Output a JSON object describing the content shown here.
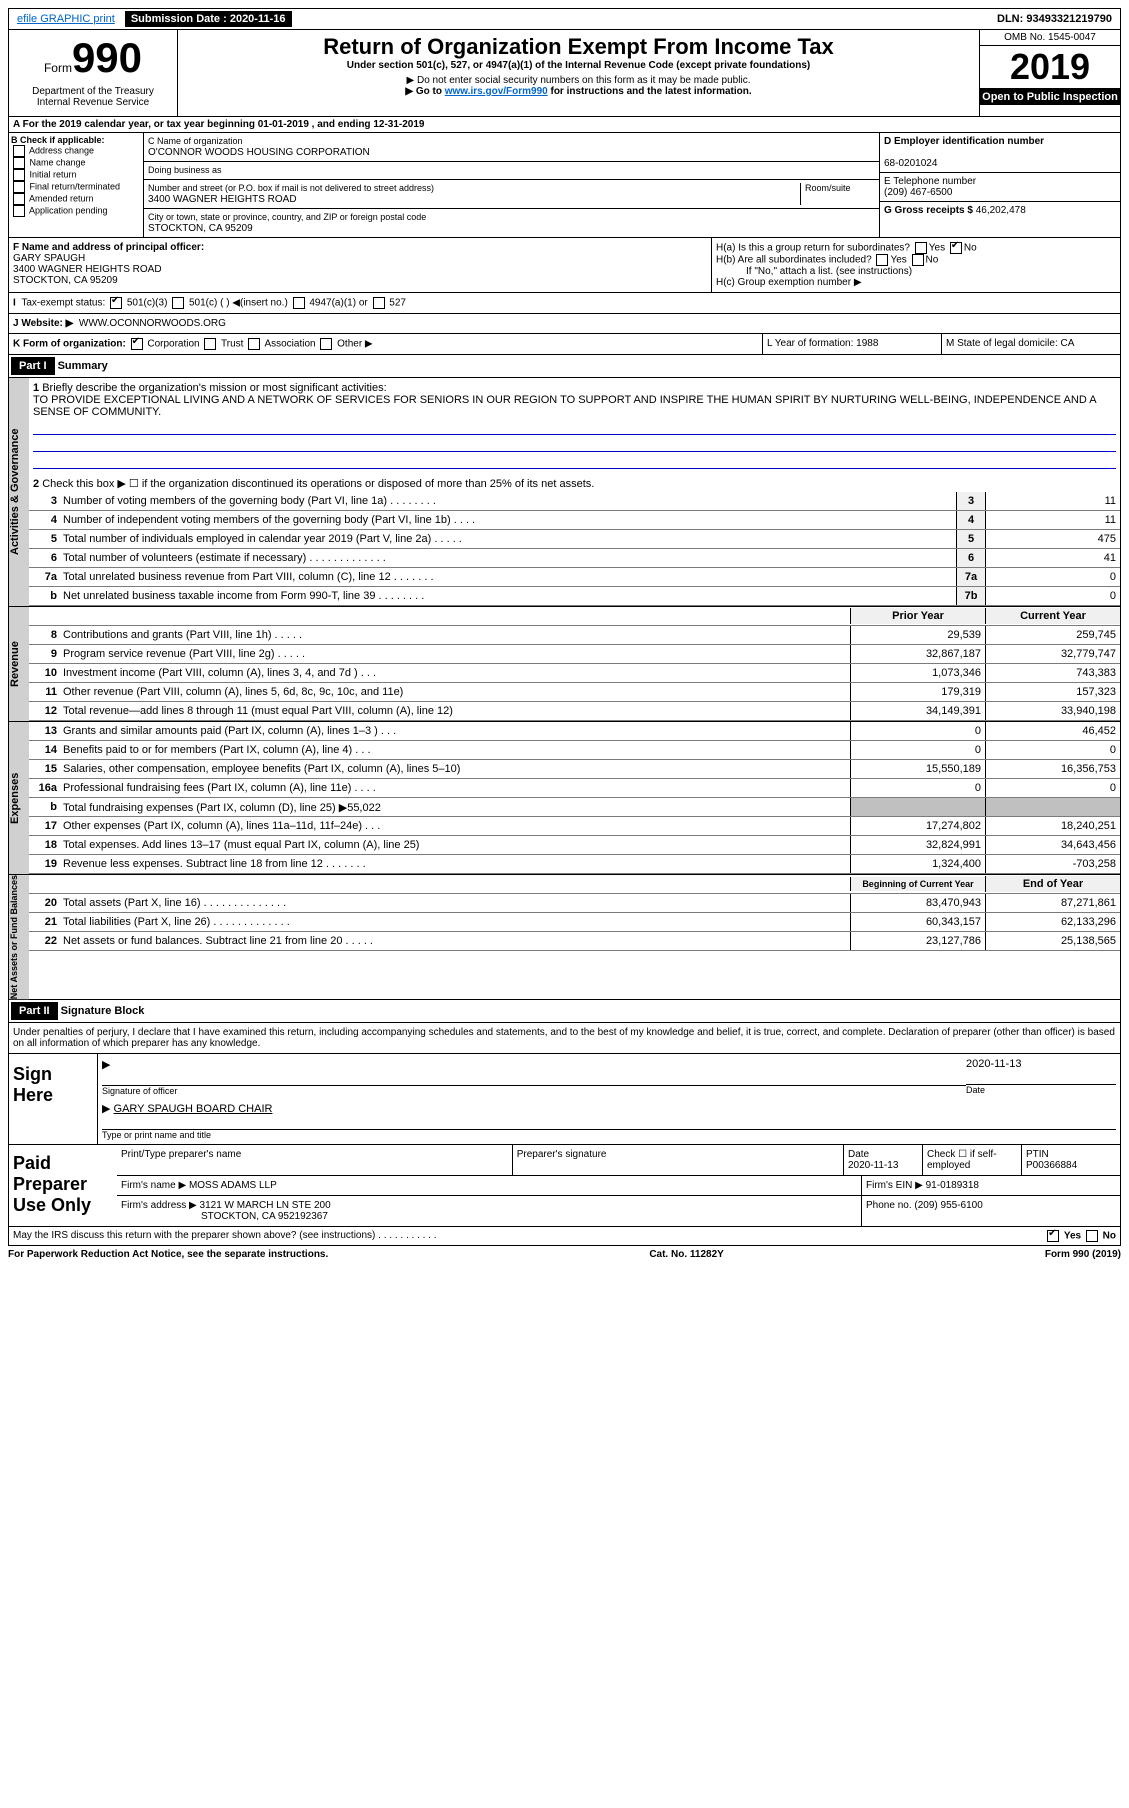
{
  "topbar": {
    "efile": "efile GRAPHIC print",
    "subdate_label": "Submission Date : 2020-11-16",
    "dln": "DLN: 93493321219790"
  },
  "header": {
    "form_prefix": "Form",
    "form_num": "990",
    "title": "Return of Organization Exempt From Income Tax",
    "subtitle": "Under section 501(c), 527, or 4947(a)(1) of the Internal Revenue Code (except private foundations)",
    "note1": "▶ Do not enter social security numbers on this form as it may be made public.",
    "note2_a": "▶ Go to ",
    "note2_link": "www.irs.gov/Form990",
    "note2_b": " for instructions and the latest information.",
    "omb": "OMB No. 1545-0047",
    "year": "2019",
    "inspection": "Open to Public Inspection",
    "dept": "Department of the Treasury\nInternal Revenue Service"
  },
  "sectionA": "A For the 2019 calendar year, or tax year beginning 01-01-2019   , and ending 12-31-2019",
  "colB": {
    "title": "B Check if applicable:",
    "items": [
      "Address change",
      "Name change",
      "Initial return",
      "Final return/terminated",
      "Amended return",
      "Application pending"
    ]
  },
  "colC": {
    "name_label": "C Name of organization",
    "name": "O'CONNOR WOODS HOUSING CORPORATION",
    "dba_label": "Doing business as",
    "addr_label": "Number and street (or P.O. box if mail is not delivered to street address)",
    "room_label": "Room/suite",
    "addr": "3400 WAGNER HEIGHTS ROAD",
    "city_label": "City or town, state or province, country, and ZIP or foreign postal code",
    "city": "STOCKTON, CA   95209"
  },
  "colD": {
    "ein_label": "D Employer identification number",
    "ein": "68-0201024",
    "phone_label": "E Telephone number",
    "phone": "(209) 467-6500",
    "gross_label": "G Gross receipts $ ",
    "gross": "46,202,478"
  },
  "rowF": {
    "label": "F  Name and address of principal officer:",
    "name": "GARY SPAUGH",
    "addr1": "3400 WAGNER HEIGHTS ROAD",
    "addr2": "STOCKTON, CA   95209"
  },
  "rowH": {
    "ha": "H(a)  Is this a group return for subordinates?",
    "hb": "H(b)  Are all subordinates included?",
    "hb_note": "If \"No,\" attach a list. (see instructions)",
    "hc": "H(c)  Group exemption number ▶"
  },
  "taxstatus": {
    "label": "Tax-exempt status:",
    "opts": [
      "501(c)(3)",
      "501(c) (  ) ◀(insert no.)",
      "4947(a)(1) or",
      "527"
    ]
  },
  "website": {
    "label": "J  Website: ▶",
    "val": "WWW.OCONNORWOODS.ORG"
  },
  "rowK": {
    "label": "K Form of organization:",
    "opts": [
      "Corporation",
      "Trust",
      "Association",
      "Other ▶"
    ],
    "L": "L Year of formation: 1988",
    "M": "M State of legal domicile: CA"
  },
  "part1": {
    "header": "Part I",
    "title": "Summary"
  },
  "governance": {
    "label": "Activities & Governance",
    "q1": "Briefly describe the organization's mission or most significant activities:",
    "mission": "TO PROVIDE EXCEPTIONAL LIVING AND A NETWORK OF SERVICES FOR SENIORS IN OUR REGION TO SUPPORT AND INSPIRE THE HUMAN SPIRIT BY NURTURING WELL-BEING, INDEPENDENCE AND A SENSE OF COMMUNITY.",
    "q2": "Check this box ▶ ☐  if the organization discontinued its operations or disposed of more than 25% of its net assets.",
    "lines": [
      {
        "n": "3",
        "t": "Number of voting members of the governing body (Part VI, line 1a)  .  .  .  .  .  .  .  .",
        "b": "3",
        "v": "11"
      },
      {
        "n": "4",
        "t": "Number of independent voting members of the governing body (Part VI, line 1b)  .  .  .  .",
        "b": "4",
        "v": "11"
      },
      {
        "n": "5",
        "t": "Total number of individuals employed in calendar year 2019 (Part V, line 2a)  .  .  .  .  .",
        "b": "5",
        "v": "475"
      },
      {
        "n": "6",
        "t": "Total number of volunteers (estimate if necessary)   .  .  .  .  .  .  .  .  .  .  .  .  .",
        "b": "6",
        "v": "41"
      },
      {
        "n": "7a",
        "t": "Total unrelated business revenue from Part VIII, column (C), line 12  .  .  .  .  .  .  .",
        "b": "7a",
        "v": "0"
      },
      {
        "n": "b",
        "prefix": "",
        "t": "Net unrelated business taxable income from Form 990-T, line 39   .  .  .  .  .  .  .  .",
        "b": "7b",
        "v": "0"
      }
    ]
  },
  "revenue": {
    "label": "Revenue",
    "hdr_prior": "Prior Year",
    "hdr_curr": "Current Year",
    "lines": [
      {
        "n": "8",
        "t": "Contributions and grants (Part VIII, line 1h)   .  .  .  .  .",
        "p": "29,539",
        "c": "259,745"
      },
      {
        "n": "9",
        "t": "Program service revenue (Part VIII, line 2g)   .  .  .  .  .",
        "p": "32,867,187",
        "c": "32,779,747"
      },
      {
        "n": "10",
        "t": "Investment income (Part VIII, column (A), lines 3, 4, and 7d )   .  .  .",
        "p": "1,073,346",
        "c": "743,383"
      },
      {
        "n": "11",
        "t": "Other revenue (Part VIII, column (A), lines 5, 6d, 8c, 9c, 10c, and 11e)",
        "p": "179,319",
        "c": "157,323"
      },
      {
        "n": "12",
        "t": "Total revenue—add lines 8 through 11 (must equal Part VIII, column (A), line 12)",
        "p": "34,149,391",
        "c": "33,940,198"
      }
    ]
  },
  "expenses": {
    "label": "Expenses",
    "lines": [
      {
        "n": "13",
        "t": "Grants and similar amounts paid (Part IX, column (A), lines 1–3 )  .  .  .",
        "p": "0",
        "c": "46,452"
      },
      {
        "n": "14",
        "t": "Benefits paid to or for members (Part IX, column (A), line 4)  .  .  .",
        "p": "0",
        "c": "0"
      },
      {
        "n": "15",
        "t": "Salaries, other compensation, employee benefits (Part IX, column (A), lines 5–10)",
        "p": "15,550,189",
        "c": "16,356,753"
      },
      {
        "n": "16a",
        "t": "Professional fundraising fees (Part IX, column (A), line 11e)  .  .  .  .",
        "p": "0",
        "c": "0"
      },
      {
        "n": "b",
        "t": "Total fundraising expenses (Part IX, column (D), line 25) ▶55,022",
        "gray": true
      },
      {
        "n": "17",
        "t": "Other expenses (Part IX, column (A), lines 11a–11d, 11f–24e)   .  .  .",
        "p": "17,274,802",
        "c": "18,240,251"
      },
      {
        "n": "18",
        "t": "Total expenses. Add lines 13–17 (must equal Part IX, column (A), line 25)",
        "p": "32,824,991",
        "c": "34,643,456"
      },
      {
        "n": "19",
        "t": "Revenue less expenses. Subtract line 18 from line 12 .  .  .  .  .  .  .",
        "p": "1,324,400",
        "c": "-703,258"
      }
    ]
  },
  "netassets": {
    "label": "Net Assets or Fund Balances",
    "hdr_begin": "Beginning of Current Year",
    "hdr_end": "End of Year",
    "lines": [
      {
        "n": "20",
        "t": "Total assets (Part X, line 16)  .  .  .  .  .  .  .  .  .  .  .  .  .  .",
        "p": "83,470,943",
        "c": "87,271,861"
      },
      {
        "n": "21",
        "t": "Total liabilities (Part X, line 26)  .  .  .  .  .  .  .  .  .  .  .  .  .",
        "p": "60,343,157",
        "c": "62,133,296"
      },
      {
        "n": "22",
        "t": "Net assets or fund balances. Subtract line 21 from line 20  .  .  .  .  .",
        "p": "23,127,786",
        "c": "25,138,565"
      }
    ]
  },
  "part2": {
    "header": "Part II",
    "title": "Signature Block"
  },
  "penalties": "Under penalties of perjury, I declare that I have examined this return, including accompanying schedules and statements, and to the best of my knowledge and belief, it is true, correct, and complete. Declaration of preparer (other than officer) is based on all information of which preparer has any knowledge.",
  "sign": {
    "label": "Sign Here",
    "sig_officer": "Signature of officer",
    "date": "2020-11-13",
    "date_label": "Date",
    "name": "GARY SPAUGH  BOARD CHAIR",
    "type_label": "Type or print name and title"
  },
  "preparer": {
    "label": "Paid Preparer Use Only",
    "h_name": "Print/Type preparer's name",
    "h_sig": "Preparer's signature",
    "h_date": "Date",
    "date": "2020-11-13",
    "check_label": "Check ☐ if self-employed",
    "ptin_label": "PTIN",
    "ptin": "P00366884",
    "firm_name_label": "Firm's name   ▶",
    "firm_name": "MOSS ADAMS LLP",
    "firm_ein_label": "Firm's EIN ▶",
    "firm_ein": "91-0189318",
    "firm_addr_label": "Firm's address ▶",
    "firm_addr1": "3121 W MARCH LN STE 200",
    "firm_addr2": "STOCKTON, CA   952192367",
    "phone_label": "Phone no.",
    "phone": "(209) 955-6100"
  },
  "footer": {
    "discuss": "May the IRS discuss this return with the preparer shown above? (see instructions)   .  .  .  .  .  .  .  .  .  .  .",
    "yes": "Yes",
    "no": "No",
    "paperwork": "For Paperwork Reduction Act Notice, see the separate instructions.",
    "cat": "Cat. No. 11282Y",
    "form": "Form 990 (2019)"
  }
}
